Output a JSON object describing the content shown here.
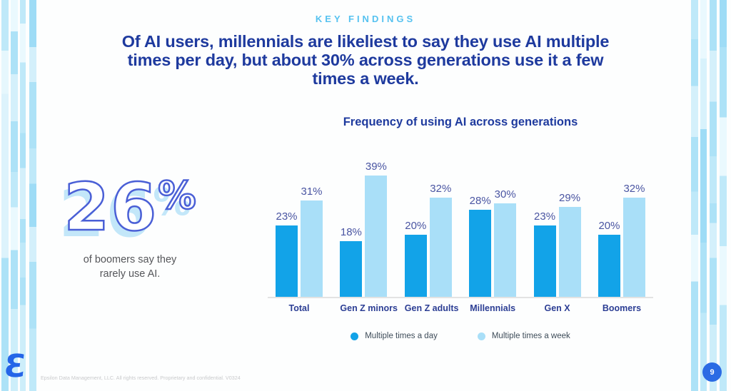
{
  "eyebrow": "KEY FINDINGS",
  "headline": {
    "full_text": "Of AI users, millennials are likeliest to say they use AI multiple times per day, but about 30% across generations use it a few times a week.",
    "lines": [
      "Of AI users, millennials are likeliest to say they use AI multiple",
      "times per day, but about 30% across generations use it a few",
      "times a week."
    ]
  },
  "stat": {
    "value": "26",
    "percent_sign": "%",
    "caption": "of boomers say they rarely use AI."
  },
  "chart_data": {
    "type": "bar",
    "title": "Frequency of using AI across generations",
    "categories": [
      "Total",
      "Gen Z minors",
      "Gen Z adults",
      "Millennials",
      "Gen X",
      "Boomers"
    ],
    "series": [
      {
        "name": "Multiple times a day",
        "color": "#12a3e8",
        "values": [
          23,
          18,
          20,
          28,
          23,
          20
        ]
      },
      {
        "name": "Multiple times a week",
        "color": "#a9dff8",
        "values": [
          31,
          39,
          32,
          30,
          29,
          32
        ]
      }
    ],
    "value_suffix": "%",
    "ylim": [
      0,
      45
    ],
    "grid": false,
    "legend_position": "bottom",
    "xlabel": "",
    "ylabel": ""
  },
  "footer": {
    "copyright": "Epsilon Data Management, LLC. All rights reserved. Proprietary and confidential. V0324",
    "logo_glyph": "Ɛ",
    "page_number": "9"
  },
  "colors": {
    "eyebrow": "#56c2f0",
    "headline": "#1e3a9e",
    "stat_outline": "#4a5fd6",
    "stat_shadow": "#c3e7f9",
    "series_day": "#12a3e8",
    "series_week": "#a9dff8",
    "value_label": "#4a55a2",
    "category_label": "#2c3e94",
    "page_badge": "#2b6be4",
    "logo_blue": "#2565e8"
  }
}
